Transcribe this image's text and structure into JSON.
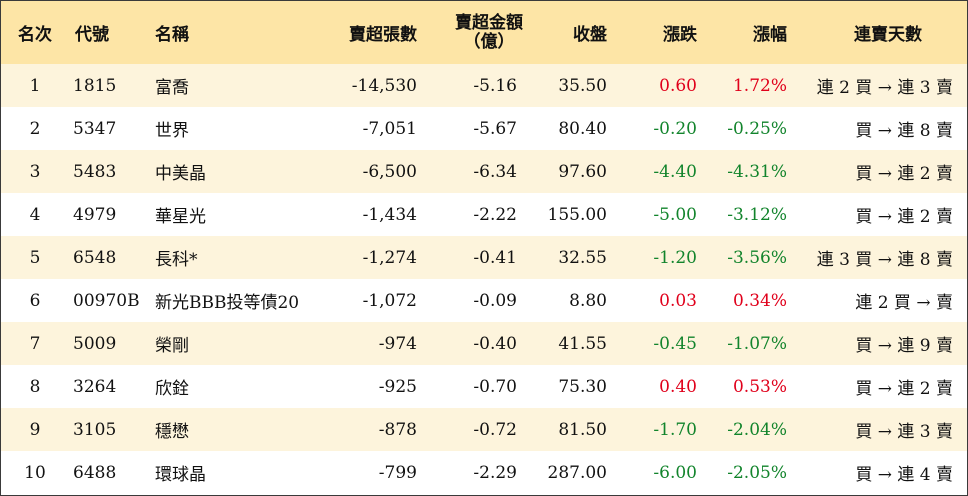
{
  "headers": {
    "rank": "名次",
    "code": "代號",
    "name": "名稱",
    "volume": "賣超張數",
    "amount_line1": "賣超金額",
    "amount_line2": "（億）",
    "close": "收盤",
    "change": "漲跌",
    "percent": "漲幅",
    "days": "連賣天數"
  },
  "colors": {
    "header_bg": "#fde5a6",
    "odd_row_bg": "#fdf4dc",
    "even_row_bg": "#ffffff",
    "up": "#e0001b",
    "down": "#12842c"
  },
  "rows": [
    {
      "rank": "1",
      "code": "1815",
      "name": "富喬",
      "volume": "-14,530",
      "amount": "-5.16",
      "close": "35.50",
      "change": "0.60",
      "percent": "1.72%",
      "direction": "up",
      "days": "連 2 買 → 連 3 賣"
    },
    {
      "rank": "2",
      "code": "5347",
      "name": "世界",
      "volume": "-7,051",
      "amount": "-5.67",
      "close": "80.40",
      "change": "-0.20",
      "percent": "-0.25%",
      "direction": "down",
      "days": "買 → 連 8 賣"
    },
    {
      "rank": "3",
      "code": "5483",
      "name": "中美晶",
      "volume": "-6,500",
      "amount": "-6.34",
      "close": "97.60",
      "change": "-4.40",
      "percent": "-4.31%",
      "direction": "down",
      "days": "買 → 連 2 賣"
    },
    {
      "rank": "4",
      "code": "4979",
      "name": "華星光",
      "volume": "-1,434",
      "amount": "-2.22",
      "close": "155.00",
      "change": "-5.00",
      "percent": "-3.12%",
      "direction": "down",
      "days": "買 → 連 2 賣"
    },
    {
      "rank": "5",
      "code": "6548",
      "name": "長科*",
      "volume": "-1,274",
      "amount": "-0.41",
      "close": "32.55",
      "change": "-1.20",
      "percent": "-3.56%",
      "direction": "down",
      "days": "連 3 買 → 連 8 賣"
    },
    {
      "rank": "6",
      "code": "00970B",
      "name": "新光BBB投等債20",
      "volume": "-1,072",
      "amount": "-0.09",
      "close": "8.80",
      "change": "0.03",
      "percent": "0.34%",
      "direction": "up",
      "days": "連 2 買 → 賣"
    },
    {
      "rank": "7",
      "code": "5009",
      "name": "榮剛",
      "volume": "-974",
      "amount": "-0.40",
      "close": "41.55",
      "change": "-0.45",
      "percent": "-1.07%",
      "direction": "down",
      "days": "買 → 連 9 賣"
    },
    {
      "rank": "8",
      "code": "3264",
      "name": "欣銓",
      "volume": "-925",
      "amount": "-0.70",
      "close": "75.30",
      "change": "0.40",
      "percent": "0.53%",
      "direction": "up",
      "days": "買 → 連 2 賣"
    },
    {
      "rank": "9",
      "code": "3105",
      "name": "穩懋",
      "volume": "-878",
      "amount": "-0.72",
      "close": "81.50",
      "change": "-1.70",
      "percent": "-2.04%",
      "direction": "down",
      "days": "買 → 連 3 賣"
    },
    {
      "rank": "10",
      "code": "6488",
      "name": "環球晶",
      "volume": "-799",
      "amount": "-2.29",
      "close": "287.00",
      "change": "-6.00",
      "percent": "-2.05%",
      "direction": "down",
      "days": "買 → 連 4 賣"
    }
  ]
}
